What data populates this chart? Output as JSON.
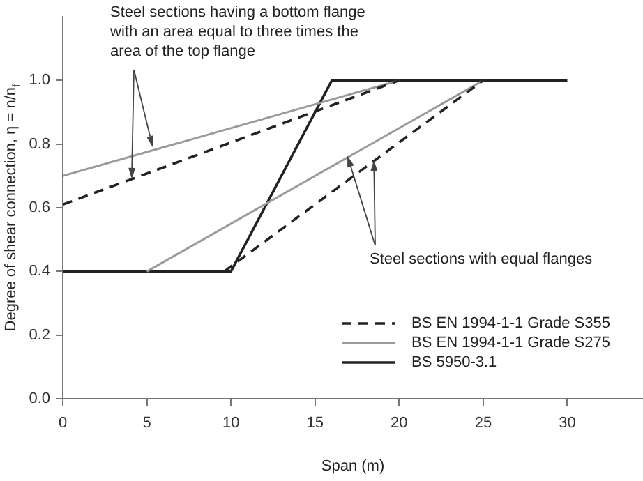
{
  "chart_data": {
    "type": "line",
    "xlabel": "Span (m)",
    "ylabel": "Degree of shear connection, η = n/n$_{f}$",
    "annotations": [
      {
        "text": "Steel sections having a bottom flange with an area equal to three times the area of the top flange",
        "x": 4.1,
        "y": 0.69
      },
      {
        "text": "Steel sections with equal flanges",
        "x": 18.5,
        "y": 0.75
      }
    ],
    "xlim": [
      0,
      34.5
    ],
    "xticks": [
      0,
      5,
      10,
      15,
      20,
      25,
      30
    ],
    "ylim": [
      0,
      1.2
    ],
    "yticks": [
      {
        "value": 0,
        "label": "0.0"
      },
      {
        "value": 0.2,
        "label": "0.2"
      },
      {
        "value": 0.4,
        "label": "0.4"
      },
      {
        "value": 0.6,
        "label": "0.6"
      },
      {
        "value": 0.8,
        "label": "0.8"
      },
      {
        "value": 1,
        "label": "1.0"
      }
    ],
    "grid": false,
    "legend": "bottom right",
    "marker": "none",
    "series": [
      {
        "name": "BS EN 1994-1-1 Grade S355",
        "type": "line",
        "line_style": "dashed",
        "color": "#222222",
        "x": [
          0,
          20
        ],
        "values": [
          0.61,
          1.0
        ]
      },
      {
        "type": "line",
        "line_style": "dashed",
        "color": "#222222",
        "x": [
          9.6,
          25
        ],
        "values": [
          0.4,
          1.0
        ]
      },
      {
        "name": "BS EN 1994-1-1 Grade S275",
        "type": "line",
        "line_style": "solid",
        "color": "#9a9a9a",
        "x": [
          0,
          20
        ],
        "values": [
          0.7,
          1.0
        ]
      },
      {
        "type": "line",
        "line_style": "solid",
        "color": "#9a9a9a",
        "x": [
          5,
          25
        ],
        "values": [
          0.4,
          1.0
        ]
      },
      {
        "name": "BS 5950-3.1",
        "type": "line",
        "line_style": "solid",
        "color": "#222222",
        "x": [
          0,
          10,
          16,
          30
        ],
        "values": [
          0.4,
          0.4,
          1.0,
          1.0
        ]
      }
    ]
  }
}
